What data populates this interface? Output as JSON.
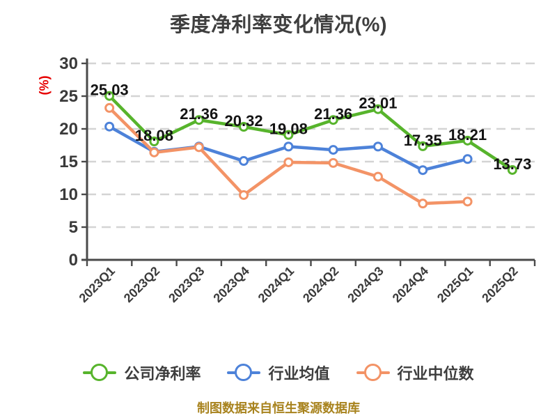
{
  "title": "季度净利率变化情况(%)",
  "footer": "制图数据来自恒生聚源数据库",
  "colors": {
    "title": "#3f3f3f",
    "axis": "#4a4a4a",
    "grid": "#d4d4d4",
    "tick_text": "#3a3a3a",
    "data_label": "#141414",
    "y_unit": "#e60000",
    "legend_text": "#3d3d3d",
    "footer": "#a8831e"
  },
  "chart_data": {
    "type": "line",
    "title": "季度净利率变化情况(%)",
    "ylabel": "(%)",
    "ylim": [
      0,
      30
    ],
    "yticks": [
      0,
      5,
      10,
      15,
      20,
      25,
      30
    ],
    "grid": "horizontal-dashed",
    "legend_position": "bottom",
    "categories": [
      "2023Q1",
      "2023Q2",
      "2023Q3",
      "2023Q4",
      "2024Q1",
      "2024Q2",
      "2024Q3",
      "2024Q4",
      "2025Q1",
      "2025Q2"
    ],
    "series": [
      {
        "name": "行业均值",
        "slug": "industry-average",
        "color": "#4d82d9",
        "show_labels": false,
        "values": [
          20.35,
          16.5,
          17.3,
          15.1,
          17.3,
          16.8,
          17.3,
          13.7,
          15.4,
          null
        ]
      },
      {
        "name": "行业中位数",
        "slug": "industry-median",
        "color": "#f39366",
        "show_labels": false,
        "values": [
          23.2,
          16.4,
          17.2,
          9.9,
          14.9,
          14.8,
          12.7,
          8.6,
          8.9,
          null
        ]
      },
      {
        "name": "公司净利率",
        "slug": "company-net-margin",
        "color": "#57b42c",
        "show_labels": true,
        "values": [
          25.03,
          18.08,
          21.36,
          20.32,
          19.08,
          21.36,
          23.01,
          17.35,
          18.21,
          13.73
        ]
      }
    ],
    "legend_order": [
      "公司净利率",
      "行业均值",
      "行业中位数"
    ]
  }
}
